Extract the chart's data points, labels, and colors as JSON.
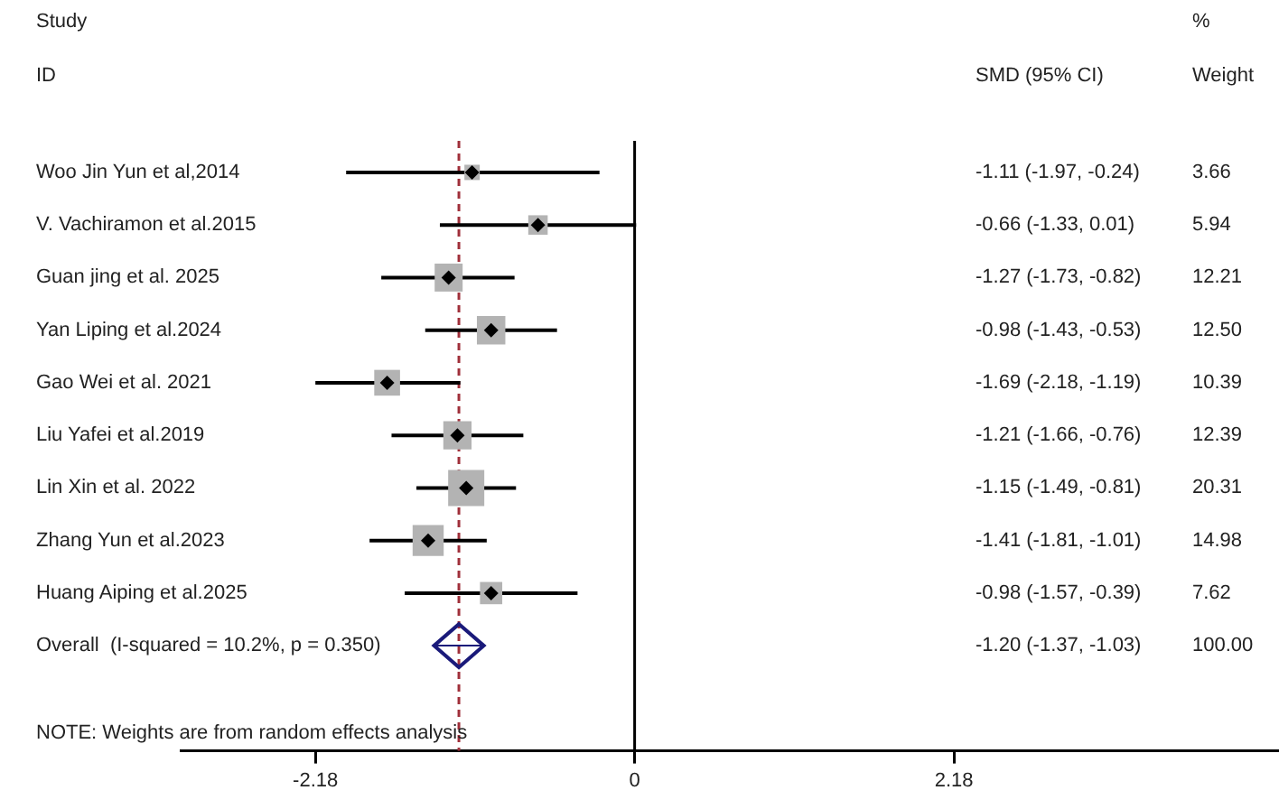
{
  "chart_data": {
    "type": "scatter",
    "orientation": "horizontal",
    "categories": [
      "Woo Jin Yun et al,2014",
      "V. Vachiramon et al.2015",
      "Guan jing et al. 2025",
      "Yan Liping et al.2024",
      "Gao Wei et al. 2021",
      "Liu Yafei et al.2019",
      "Lin Xin et al. 2022",
      "Zhang Yun et al.2023",
      "Huang Aiping et al.2025",
      "Overall  (I-squared = 10.2%, p = 0.350)"
    ],
    "xlim": [
      -3.1,
      4.4
    ],
    "xticks": [
      -2.18,
      0,
      2.18
    ],
    "grid": false,
    "legend": false,
    "series": [
      {
        "type": "scatter",
        "marker": "square",
        "color": "#b3b3b3",
        "values": [
          -1.11,
          -0.66,
          -1.27,
          -0.98,
          -1.69,
          -1.21,
          -1.15,
          -1.41,
          -0.98,
          null
        ],
        "errors": [
          [
            -1.97,
            -0.24
          ],
          [
            -1.33,
            0.01
          ],
          [
            -1.73,
            -0.82
          ],
          [
            -1.43,
            -0.53
          ],
          [
            -2.18,
            -1.19
          ],
          [
            -1.66,
            -0.76
          ],
          [
            -1.49,
            -0.81
          ],
          [
            -1.81,
            -1.01
          ],
          [
            -1.57,
            -0.39
          ],
          null
        ],
        "sizes": [
          0.18,
          0.29,
          0.6,
          0.62,
          0.51,
          0.61,
          1,
          0.74,
          0.38,
          null
        ]
      },
      {
        "type": "scatter",
        "marker": "diamond",
        "color": "#1a1a7a",
        "values": [
          null,
          null,
          null,
          null,
          null,
          null,
          null,
          null,
          null,
          -1.2
        ],
        "errors": [
          null,
          null,
          null,
          null,
          null,
          null,
          null,
          null,
          null,
          [
            -1.37,
            -1.03
          ]
        ]
      }
    ],
    "ref_lines": [
      {
        "axis": "x",
        "value": 0,
        "color": "#000000",
        "line_style": "solid"
      },
      {
        "axis": "x",
        "value": -1.2,
        "color": "#a0303a",
        "line_style": "dashed"
      }
    ],
    "annotations": [
      "Study",
      "ID",
      "SMD (95% CI)",
      "%",
      "Weight",
      "NOTE: Weights are from random effects analysis",
      "-1.11 (-1.97, -0.24)",
      "-0.66 (-1.33, 0.01)",
      "-1.27 (-1.73, -0.82)",
      "-0.98 (-1.43, -0.53)",
      "-1.69 (-2.18, -1.19)",
      "-1.21 (-1.66, -0.76)",
      "-1.15 (-1.49, -0.81)",
      "-1.41 (-1.81, -1.01)",
      "-0.98 (-1.57, -0.39)",
      "-1.20 (-1.37, -1.03)",
      "3.66",
      "5.94",
      "12.21",
      "12.50",
      "10.39",
      "12.39",
      "20.31",
      "14.98",
      "7.62",
      "100.00"
    ]
  }
}
